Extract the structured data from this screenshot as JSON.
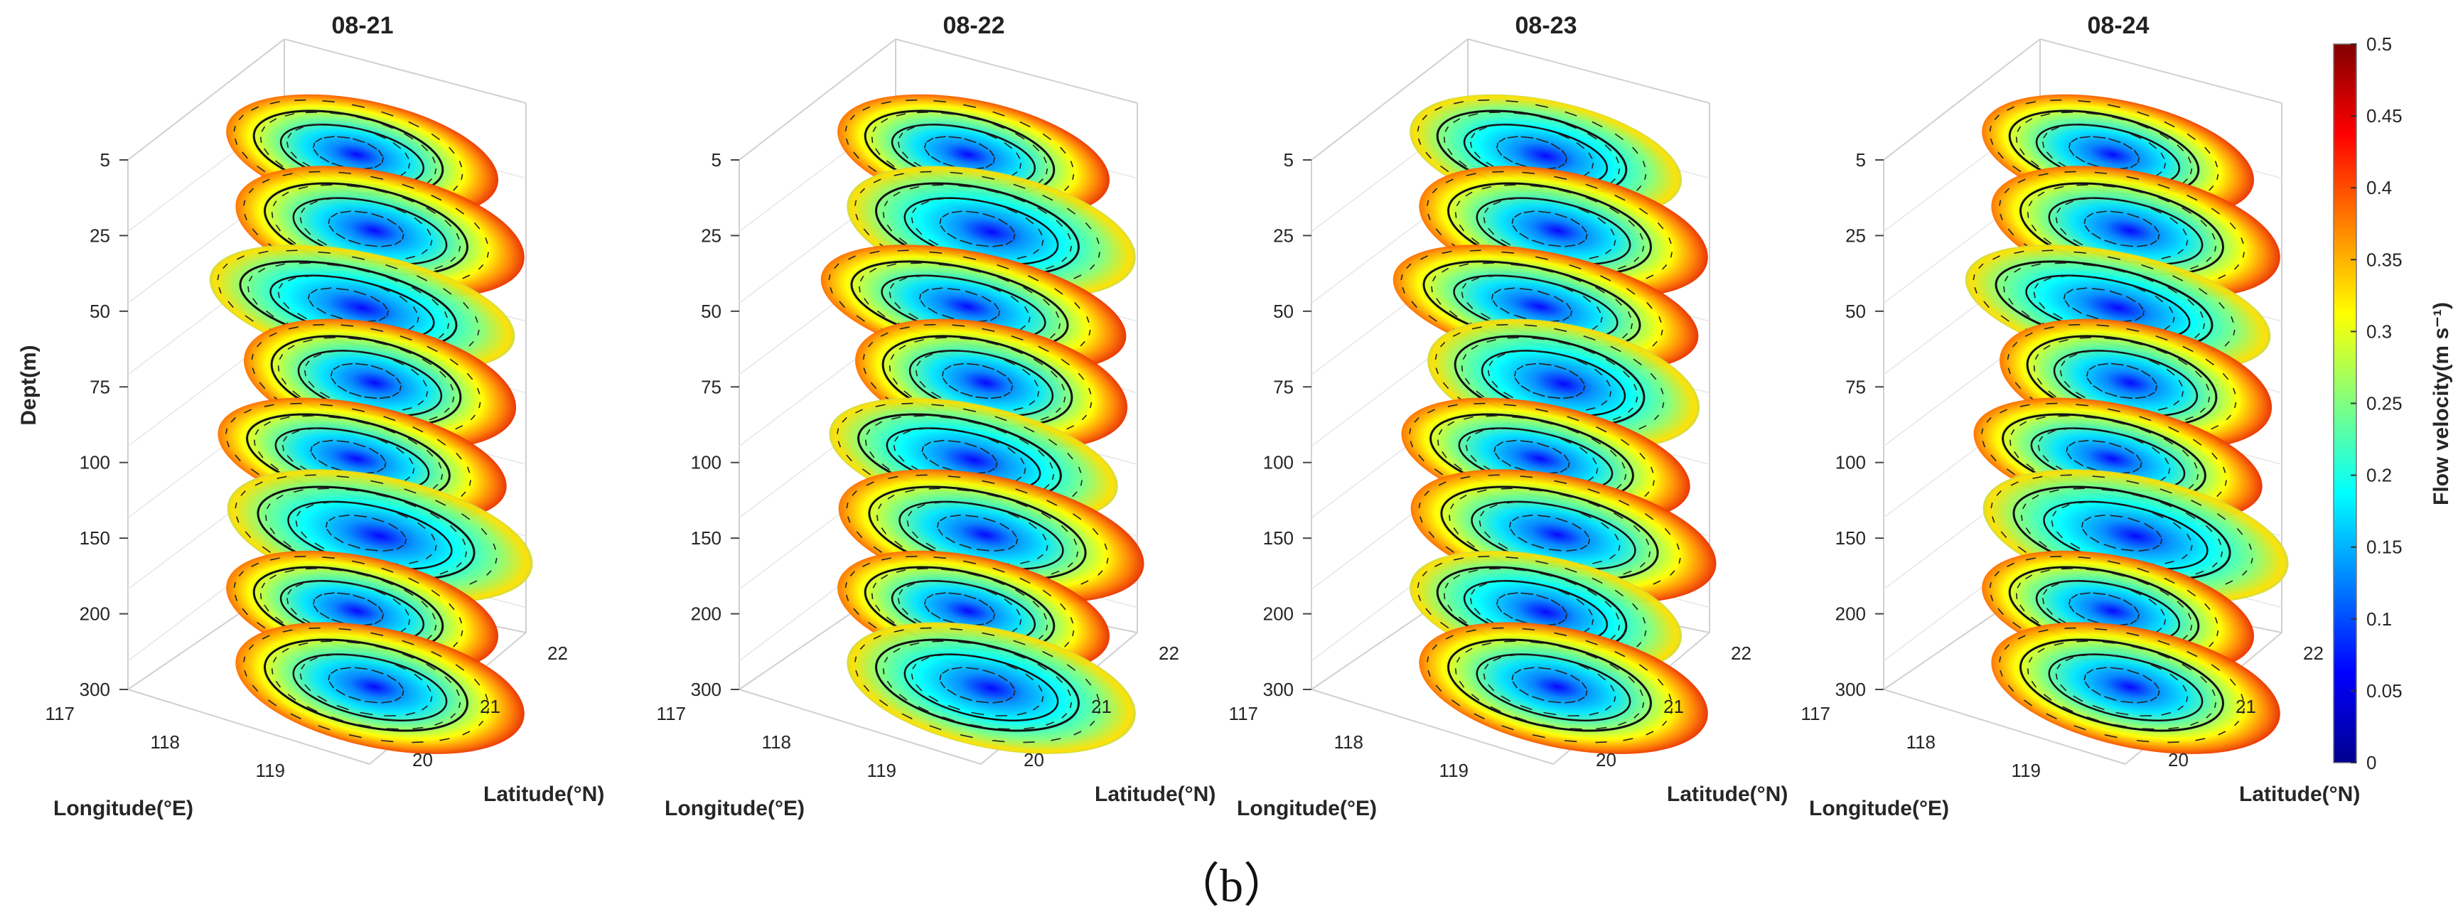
{
  "figure_label": "（b）",
  "colormap": [
    "#00008f",
    "#0000ff",
    "#0080ff",
    "#00ffff",
    "#80ff80",
    "#ffff00",
    "#ff8000",
    "#ff0000",
    "#800000"
  ],
  "chart_data": [
    {
      "type": "3d-stacked-slices",
      "title": "08-21",
      "xlabel": "Longitude(°E)",
      "ylabel": "Latitude(°N)",
      "zlabel": "Dept(m)",
      "xticks": [
        "117",
        "118",
        "119"
      ],
      "yticks": [
        "20",
        "21",
        "22"
      ],
      "zticks": [
        "5",
        "25",
        "50",
        "75",
        "100",
        "150",
        "200",
        "300"
      ],
      "depth_levels": [
        5,
        25,
        50,
        75,
        100,
        150,
        200,
        300
      ],
      "eddy_center_velocity": 0.1,
      "eddy_edge_velocity_max": 0.5
    },
    {
      "type": "3d-stacked-slices",
      "title": "08-22",
      "xlabel": "Longitude(°E)",
      "ylabel": "Latitude(°N)",
      "zlabel": "",
      "xticks": [
        "117",
        "118",
        "119"
      ],
      "yticks": [
        "20",
        "21",
        "22"
      ],
      "zticks": [
        "5",
        "25",
        "50",
        "75",
        "100",
        "150",
        "200",
        "300"
      ],
      "depth_levels": [
        5,
        25,
        50,
        75,
        100,
        150,
        200,
        300
      ],
      "eddy_center_velocity": 0.1,
      "eddy_edge_velocity_max": 0.5
    },
    {
      "type": "3d-stacked-slices",
      "title": "08-23",
      "xlabel": "Longitude(°E)",
      "ylabel": "Latitude(°N)",
      "zlabel": "",
      "xticks": [
        "117",
        "118",
        "119"
      ],
      "yticks": [
        "20",
        "21",
        "22"
      ],
      "zticks": [
        "5",
        "25",
        "50",
        "75",
        "100",
        "150",
        "200",
        "300"
      ],
      "depth_levels": [
        5,
        25,
        50,
        75,
        100,
        150,
        200,
        300
      ],
      "eddy_center_velocity": 0.1,
      "eddy_edge_velocity_max": 0.45
    },
    {
      "type": "3d-stacked-slices",
      "title": "08-24",
      "xlabel": "Longitude(°E)",
      "ylabel": "Latitude(°N)",
      "zlabel": "",
      "xticks": [
        "117",
        "118",
        "119"
      ],
      "yticks": [
        "20",
        "21",
        "22"
      ],
      "zticks": [
        "5",
        "25",
        "50",
        "75",
        "100",
        "150",
        "200",
        "300"
      ],
      "depth_levels": [
        5,
        25,
        50,
        75,
        100,
        150,
        200,
        300
      ],
      "eddy_center_velocity": 0.1,
      "eddy_edge_velocity_max": 0.45
    }
  ],
  "colorbar": {
    "label": "Flow velocity(m s⁻¹)",
    "min": 0,
    "max": 0.5,
    "ticks": [
      "0",
      "0.05",
      "0.1",
      "0.15",
      "0.2",
      "0.25",
      "0.3",
      "0.35",
      "0.4",
      "0.45",
      "0.5"
    ]
  }
}
